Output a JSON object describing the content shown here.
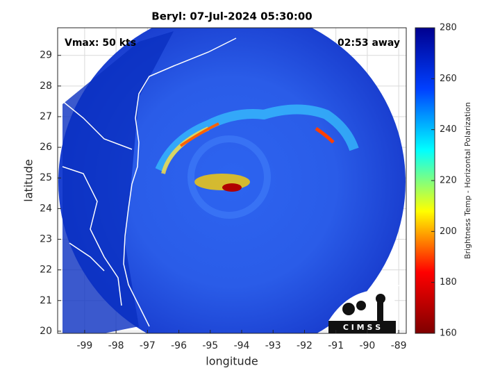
{
  "chart_data": {
    "type": "map",
    "title": "Beryl: 07-Jul-2024 05:30:00",
    "annotations": [
      "Vmax: 50 kts",
      "02:53 away"
    ],
    "xlabel": "longitude",
    "ylabel": "latitude",
    "xlim": [
      -99.86,
      -88.76
    ],
    "xticks": [
      -99,
      -98,
      -97,
      -96,
      -95,
      -94,
      -93,
      -92,
      -91,
      -90,
      -89
    ],
    "ylim": [
      19.93,
      29.9
    ],
    "yticks": [
      20,
      21,
      22,
      23,
      24,
      25,
      26,
      27,
      28,
      29
    ],
    "grid": true,
    "colorbar": {
      "label": "Brightness Temp - Horizontal Polarization",
      "lim": [
        160,
        280
      ],
      "ticks": [
        160,
        180,
        200,
        220,
        240,
        260,
        280
      ],
      "colormap": [
        "#7f0000",
        "#ff0000",
        "#ffff00",
        "#00ffff",
        "#0040ff",
        "#00008f"
      ]
    },
    "logo": "C I M S S"
  }
}
